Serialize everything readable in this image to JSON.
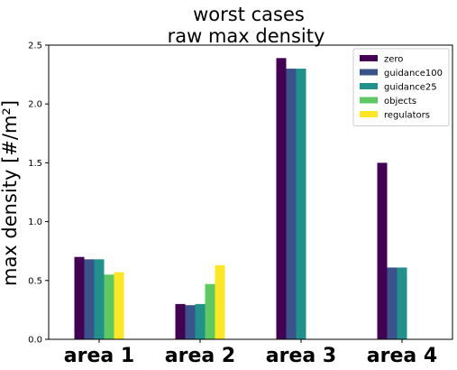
{
  "chart_data": {
    "type": "bar",
    "title_lines": [
      "worst cases",
      "raw max density"
    ],
    "xlabel": "",
    "ylabel": "max density [#/m²]",
    "categories": [
      "area 1",
      "area 2",
      "area 3",
      "area 4"
    ],
    "ylim": [
      0,
      2.5
    ],
    "yticks": [
      0.0,
      0.5,
      1.0,
      1.5,
      2.0,
      2.5
    ],
    "ytick_labels": [
      "0.0",
      "0.5",
      "1.0",
      "1.5",
      "2.0",
      "2.5"
    ],
    "grid": false,
    "legend_position": "top-right",
    "series": [
      {
        "name": "zero",
        "color": "#440154",
        "values": [
          0.7,
          0.3,
          2.39,
          1.5
        ]
      },
      {
        "name": "guidance100",
        "color": "#3b528b",
        "values": [
          0.68,
          0.29,
          2.3,
          0.61
        ]
      },
      {
        "name": "guidance25",
        "color": "#21918c",
        "values": [
          0.68,
          0.3,
          2.3,
          0.61
        ]
      },
      {
        "name": "objects",
        "color": "#5ec962",
        "values": [
          0.55,
          0.47,
          0,
          0
        ]
      },
      {
        "name": "regulators",
        "color": "#fde725",
        "values": [
          0.57,
          0.63,
          0,
          0
        ]
      }
    ]
  }
}
